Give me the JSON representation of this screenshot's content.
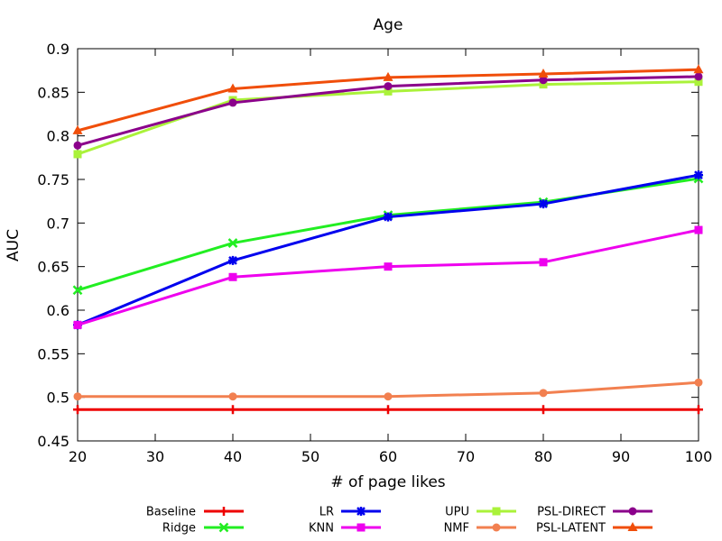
{
  "chart_data": {
    "type": "line",
    "title": "Age",
    "xlabel": "# of page likes",
    "ylabel": "AUC",
    "xlim": [
      20,
      100
    ],
    "ylim": [
      0.45,
      0.9
    ],
    "xticks": [
      20,
      30,
      40,
      50,
      60,
      70,
      80,
      90,
      100
    ],
    "yticks": [
      0.45,
      0.5,
      0.55,
      0.6,
      0.65,
      0.7,
      0.75,
      0.8,
      0.85,
      0.9
    ],
    "xtick_labels": [
      "20",
      "30",
      "40",
      "50",
      "60",
      "70",
      "80",
      "90",
      "100"
    ],
    "ytick_labels": [
      "0.45",
      "0.5",
      "0.55",
      "0.6",
      "0.65",
      "0.7",
      "0.75",
      "0.8",
      "0.85",
      "0.9"
    ],
    "grid": false,
    "legend_position": "bottom",
    "x": [
      20,
      40,
      60,
      80,
      100
    ],
    "series": [
      {
        "name": "Baseline",
        "color": "#ee0000",
        "marker": "plus",
        "values": [
          0.486,
          0.486,
          0.486,
          0.486,
          0.486
        ]
      },
      {
        "name": "Ridge",
        "color": "#22ee22",
        "marker": "x",
        "values": [
          0.623,
          0.677,
          0.709,
          0.724,
          0.751
        ]
      },
      {
        "name": "LR",
        "color": "#0000ee",
        "marker": "star",
        "values": [
          0.583,
          0.657,
          0.707,
          0.722,
          0.755
        ]
      },
      {
        "name": "KNN",
        "color": "#ee00ee",
        "marker": "square",
        "values": [
          0.583,
          0.638,
          0.65,
          0.655,
          0.692
        ]
      },
      {
        "name": "UPU",
        "color": "#aaf23a",
        "marker": "square",
        "values": [
          0.779,
          0.841,
          0.851,
          0.859,
          0.862
        ]
      },
      {
        "name": "NMF",
        "color": "#f28050",
        "marker": "circle",
        "values": [
          0.501,
          0.501,
          0.501,
          0.505,
          0.517
        ]
      },
      {
        "name": "PSL-DIRECT",
        "color": "#8b008b",
        "marker": "circle",
        "values": [
          0.789,
          0.838,
          0.857,
          0.864,
          0.868
        ]
      },
      {
        "name": "PSL-LATENT",
        "color": "#f04e0a",
        "marker": "triangle",
        "values": [
          0.806,
          0.854,
          0.867,
          0.871,
          0.876
        ]
      }
    ]
  }
}
